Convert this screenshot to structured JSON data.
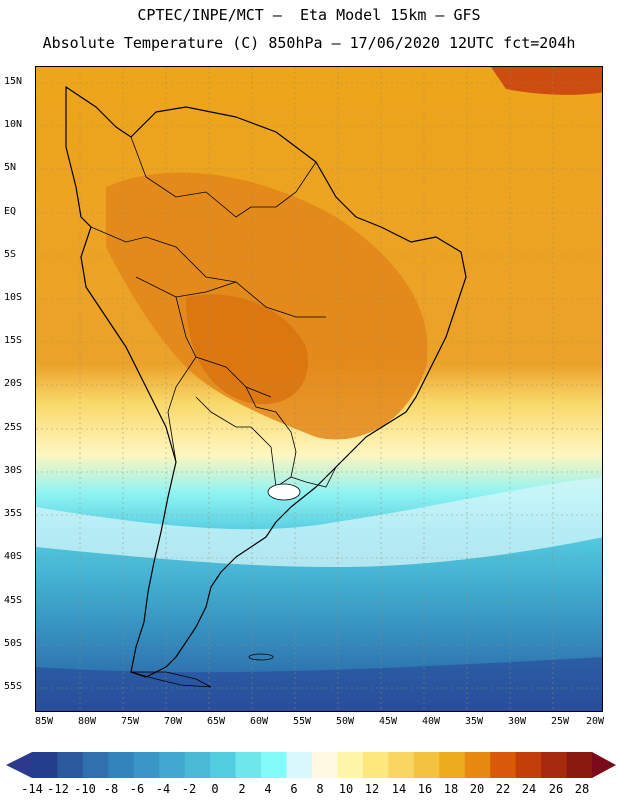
{
  "header": {
    "line1": "CPTEC/INPE/MCT –  Eta Model 15km – GFS",
    "line2": "Absolute Temperature (C) 850hPa – 17/06/2020 12UTC fct=204h"
  },
  "axes": {
    "lat_labels": [
      "15N",
      "10N",
      "5N",
      "EQ",
      "5S",
      "10S",
      "15S",
      "20S",
      "25S",
      "30S",
      "35S",
      "40S",
      "45S",
      "50S",
      "55S"
    ],
    "lon_labels": [
      "85W",
      "80W",
      "75W",
      "70W",
      "65W",
      "60W",
      "55W",
      "50W",
      "45W",
      "40W",
      "35W",
      "30W",
      "25W",
      "20W"
    ]
  },
  "colorbar": {
    "labels": [
      "-14",
      "-12",
      "-10",
      "-8",
      "-6",
      "-4",
      "-2",
      "0",
      "2",
      "4",
      "6",
      "8",
      "10",
      "12",
      "14",
      "16",
      "18",
      "20",
      "22",
      "24",
      "26",
      "28"
    ],
    "under_color": "#2b3a8c",
    "over_color": "#7a0a1a",
    "colors": [
      "#233f8e",
      "#2b5b9e",
      "#2f70ae",
      "#3384bc",
      "#3a96c6",
      "#42a8cf",
      "#48bad6",
      "#52cde0",
      "#6fe8ec",
      "#83fbfb",
      "#d9f8fb",
      "#fef9e2",
      "#fff6a8",
      "#fde87e",
      "#f9d661",
      "#f3c340",
      "#edab1e",
      "#e88a12",
      "#d95b0a",
      "#c43e0a",
      "#a82a0e",
      "#8a1a10"
    ]
  }
}
